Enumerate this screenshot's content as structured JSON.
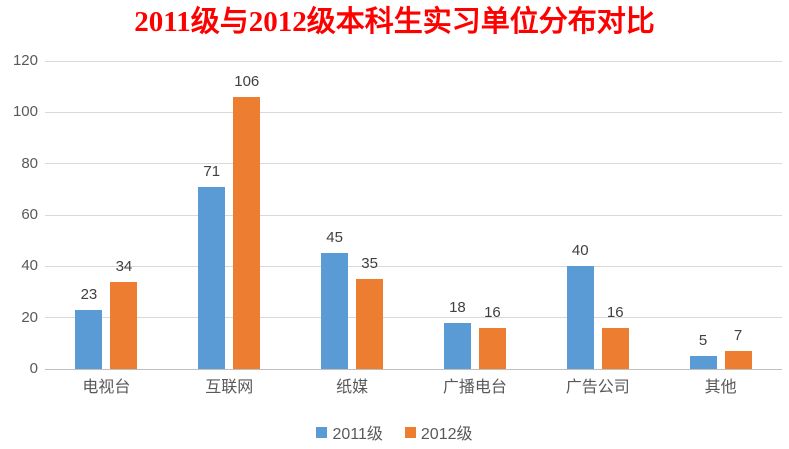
{
  "title": "2011级与2012级本科生实习单位分布对比",
  "colors": {
    "title": "#FF0000",
    "series_2011": "#5B9BD5",
    "series_2012": "#ED7D31",
    "gridline": "#D9D9D9",
    "axis_line": "#BFBFBF",
    "axis_text": "#595959",
    "data_label_text": "#404040"
  },
  "chart_data": {
    "type": "bar",
    "title": "2011级与2012级本科生实习单位分布对比",
    "categories": [
      "电视台",
      "互联网",
      "纸媒",
      "广播电台",
      "广告公司",
      "其他"
    ],
    "series": [
      {
        "name": "2011级",
        "color": "#5B9BD5",
        "values": [
          23,
          71,
          45,
          18,
          40,
          5
        ]
      },
      {
        "name": "2012级",
        "color": "#ED7D31",
        "values": [
          34,
          106,
          35,
          16,
          16,
          7
        ]
      }
    ],
    "xlabel": "",
    "ylabel": "",
    "ylim": [
      0,
      120
    ],
    "yticks": [
      0,
      20,
      40,
      60,
      80,
      100,
      120
    ],
    "grid": true,
    "data_labels": true,
    "legend_position": "bottom"
  }
}
